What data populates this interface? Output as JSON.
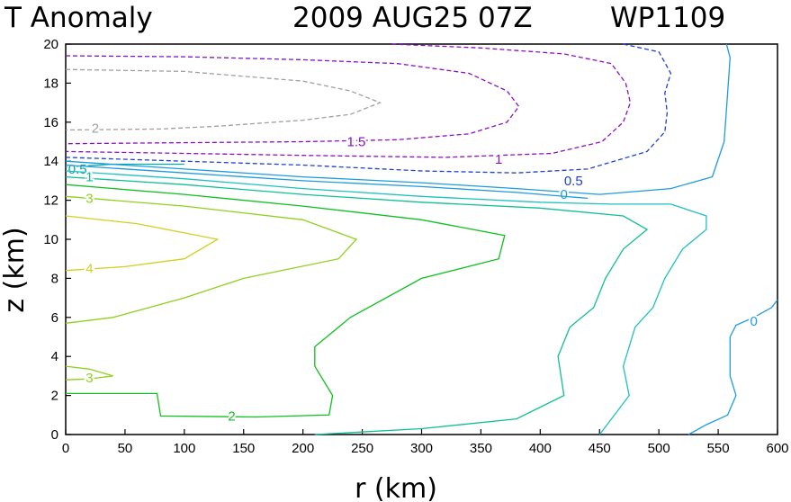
{
  "chart_data": {
    "type": "contour",
    "title": "T Anomaly",
    "datetime": "2009 AUG25 07Z",
    "storm_id": "WP1109",
    "xlabel": "r (km)",
    "ylabel": "z (km)",
    "xlim": [
      0,
      600
    ],
    "ylim": [
      0,
      20
    ],
    "xticks": [
      "0",
      "50",
      "100",
      "150",
      "200",
      "250",
      "300",
      "350",
      "400",
      "450",
      "500",
      "550",
      "600"
    ],
    "yticks": [
      "0",
      "2",
      "4",
      "6",
      "8",
      "10",
      "12",
      "14",
      "16",
      "18",
      "20"
    ],
    "contours": [
      {
        "level": "2",
        "color": "#a0a0a0",
        "dashed": true,
        "label_at": [
          25,
          15.7
        ],
        "points": [
          [
            0,
            18.7
          ],
          [
            100,
            18.6
          ],
          [
            200,
            18.1
          ],
          [
            240,
            17.6
          ],
          [
            265,
            17.0
          ],
          [
            240,
            16.4
          ],
          [
            200,
            16.1
          ],
          [
            130,
            15.8
          ],
          [
            80,
            15.65
          ],
          [
            0,
            15.6
          ]
        ]
      },
      {
        "level": "1.5",
        "color": "#8a10c8",
        "dashed": true,
        "label_at": [
          245,
          15.0
        ],
        "points": [
          [
            0,
            19.4
          ],
          [
            100,
            19.35
          ],
          [
            200,
            19.2
          ],
          [
            280,
            19.0
          ],
          [
            340,
            18.5
          ],
          [
            372,
            17.6
          ],
          [
            382,
            16.8
          ],
          [
            372,
            16.0
          ],
          [
            340,
            15.4
          ],
          [
            280,
            15.1
          ],
          [
            200,
            15.0
          ],
          [
            100,
            14.95
          ],
          [
            0,
            14.9
          ]
        ]
      },
      {
        "level": "1",
        "color": "#8a10c8",
        "dashed": true,
        "label_at": [
          365,
          14.1
        ],
        "points": [
          [
            275,
            20.0
          ],
          [
            350,
            19.8
          ],
          [
            420,
            19.5
          ],
          [
            460,
            19.0
          ],
          [
            472,
            18.0
          ],
          [
            476,
            17.0
          ],
          [
            470,
            16.0
          ],
          [
            452,
            15.0
          ],
          [
            410,
            14.4
          ],
          [
            320,
            14.2
          ],
          [
            200,
            14.3
          ],
          [
            100,
            14.4
          ],
          [
            0,
            14.5
          ]
        ]
      },
      {
        "level": "0.5",
        "color": "#2040d0",
        "dashed": true,
        "label_at": [
          428,
          13.0
        ],
        "points": [
          [
            470,
            20.0
          ],
          [
            500,
            19.6
          ],
          [
            510,
            18.5
          ],
          [
            505,
            17.5
          ],
          [
            507,
            16.5
          ],
          [
            505,
            15.5
          ],
          [
            490,
            14.5
          ],
          [
            440,
            13.6
          ],
          [
            380,
            13.4
          ],
          [
            300,
            13.5
          ],
          [
            200,
            13.8
          ],
          [
            100,
            14.0
          ],
          [
            0,
            14.2
          ]
        ]
      },
      {
        "level": "0.5",
        "color": "#00aaaa",
        "dashed": false,
        "label_at": [
          10,
          13.6
        ],
        "points": [
          [
            0,
            13.7
          ],
          [
            40,
            13.85
          ],
          [
            100,
            13.85
          ]
        ]
      },
      {
        "level": "0",
        "color": "#1e9be0",
        "dashed": false,
        "label_at": [
          420,
          12.3
        ],
        "points": [
          [
            0,
            14.0
          ],
          [
            100,
            13.6
          ],
          [
            200,
            13.2
          ],
          [
            300,
            12.9
          ],
          [
            380,
            12.6
          ],
          [
            450,
            12.3
          ],
          [
            510,
            12.6
          ],
          [
            545,
            13.2
          ],
          [
            555,
            15.0
          ],
          [
            558,
            17.5
          ],
          [
            560,
            19.3
          ],
          [
            557,
            20.0
          ]
        ]
      },
      {
        "level": "0",
        "color": "#1e9be0",
        "dashed": false,
        "label_at": [
          580,
          5.8
        ],
        "points": [
          [
            600,
            6.9
          ],
          [
            595,
            6.5
          ],
          [
            580,
            6.0
          ],
          [
            565,
            5.6
          ],
          [
            560,
            5.0
          ],
          [
            560,
            3.0
          ],
          [
            565,
            2.0
          ],
          [
            558,
            1.0
          ],
          [
            540,
            0.5
          ],
          [
            525,
            0.0
          ]
        ]
      },
      {
        "level": "0",
        "color": "#1e9be0",
        "dashed": false,
        "label_at": null,
        "points": [
          [
            0,
            13.8
          ],
          [
            100,
            13.4
          ],
          [
            200,
            13.0
          ],
          [
            300,
            12.7
          ],
          [
            380,
            12.4
          ],
          [
            440,
            12.1
          ]
        ]
      },
      {
        "level": "0.5",
        "color": "#1ec0c0",
        "dashed": false,
        "label_at": null,
        "points": [
          [
            0,
            13.5
          ],
          [
            100,
            13.1
          ],
          [
            200,
            12.6
          ],
          [
            300,
            12.2
          ],
          [
            400,
            11.9
          ],
          [
            460,
            11.8
          ],
          [
            510,
            11.8
          ],
          [
            540,
            11.2
          ],
          [
            540,
            10.5
          ],
          [
            520,
            9.5
          ],
          [
            505,
            8.0
          ],
          [
            495,
            6.5
          ],
          [
            480,
            5.5
          ],
          [
            470,
            3.5
          ],
          [
            475,
            2.0
          ],
          [
            450,
            0.0
          ]
        ]
      },
      {
        "level": "1",
        "color": "#10c090",
        "dashed": false,
        "label_at": [
          20,
          13.2
        ],
        "points": [
          [
            0,
            13.2
          ],
          [
            100,
            12.8
          ],
          [
            200,
            12.3
          ],
          [
            300,
            11.9
          ],
          [
            400,
            11.6
          ],
          [
            470,
            11.2
          ],
          [
            490,
            10.5
          ],
          [
            470,
            9.5
          ],
          [
            455,
            8.0
          ],
          [
            445,
            6.5
          ],
          [
            425,
            5.5
          ],
          [
            415,
            4.0
          ],
          [
            420,
            2.0
          ],
          [
            380,
            0.8
          ],
          [
            300,
            0.3
          ],
          [
            210,
            0.0
          ]
        ]
      },
      {
        "level": "2",
        "color": "#10c020",
        "dashed": false,
        "label_at": [
          140,
          0.95
        ],
        "points": [
          [
            0,
            12.8
          ],
          [
            100,
            12.3
          ],
          [
            200,
            11.7
          ],
          [
            300,
            11.0
          ],
          [
            370,
            10.2
          ],
          [
            365,
            9.0
          ],
          [
            300,
            8.0
          ],
          [
            240,
            6.0
          ],
          [
            210,
            4.5
          ],
          [
            210,
            3.5
          ],
          [
            225,
            2.0
          ],
          [
            222,
            1.0
          ],
          [
            160,
            0.9
          ],
          [
            80,
            0.95
          ],
          [
            77,
            2.1
          ],
          [
            0,
            2.1
          ]
        ]
      },
      {
        "level": "3",
        "color": "#90d020",
        "dashed": false,
        "label_at": [
          20,
          12.1
        ],
        "points": [
          [
            0,
            12.2
          ],
          [
            100,
            11.7
          ],
          [
            200,
            11.0
          ],
          [
            245,
            10.0
          ],
          [
            230,
            9.0
          ],
          [
            150,
            8.0
          ],
          [
            100,
            7.0
          ],
          [
            40,
            6.0
          ],
          [
            0,
            5.7
          ]
        ]
      },
      {
        "level": "3",
        "color": "#90d020",
        "dashed": false,
        "label_at": [
          20,
          2.9
        ],
        "points": [
          [
            0,
            3.5
          ],
          [
            20,
            3.35
          ],
          [
            40,
            3.0
          ],
          [
            20,
            2.85
          ],
          [
            0,
            2.8
          ]
        ]
      },
      {
        "level": "4",
        "color": "#d0d020",
        "dashed": false,
        "label_at": [
          20,
          8.5
        ],
        "points": [
          [
            0,
            11.2
          ],
          [
            60,
            10.8
          ],
          [
            128,
            10.0
          ],
          [
            100,
            9.0
          ],
          [
            50,
            8.6
          ],
          [
            0,
            8.4
          ]
        ]
      }
    ]
  }
}
